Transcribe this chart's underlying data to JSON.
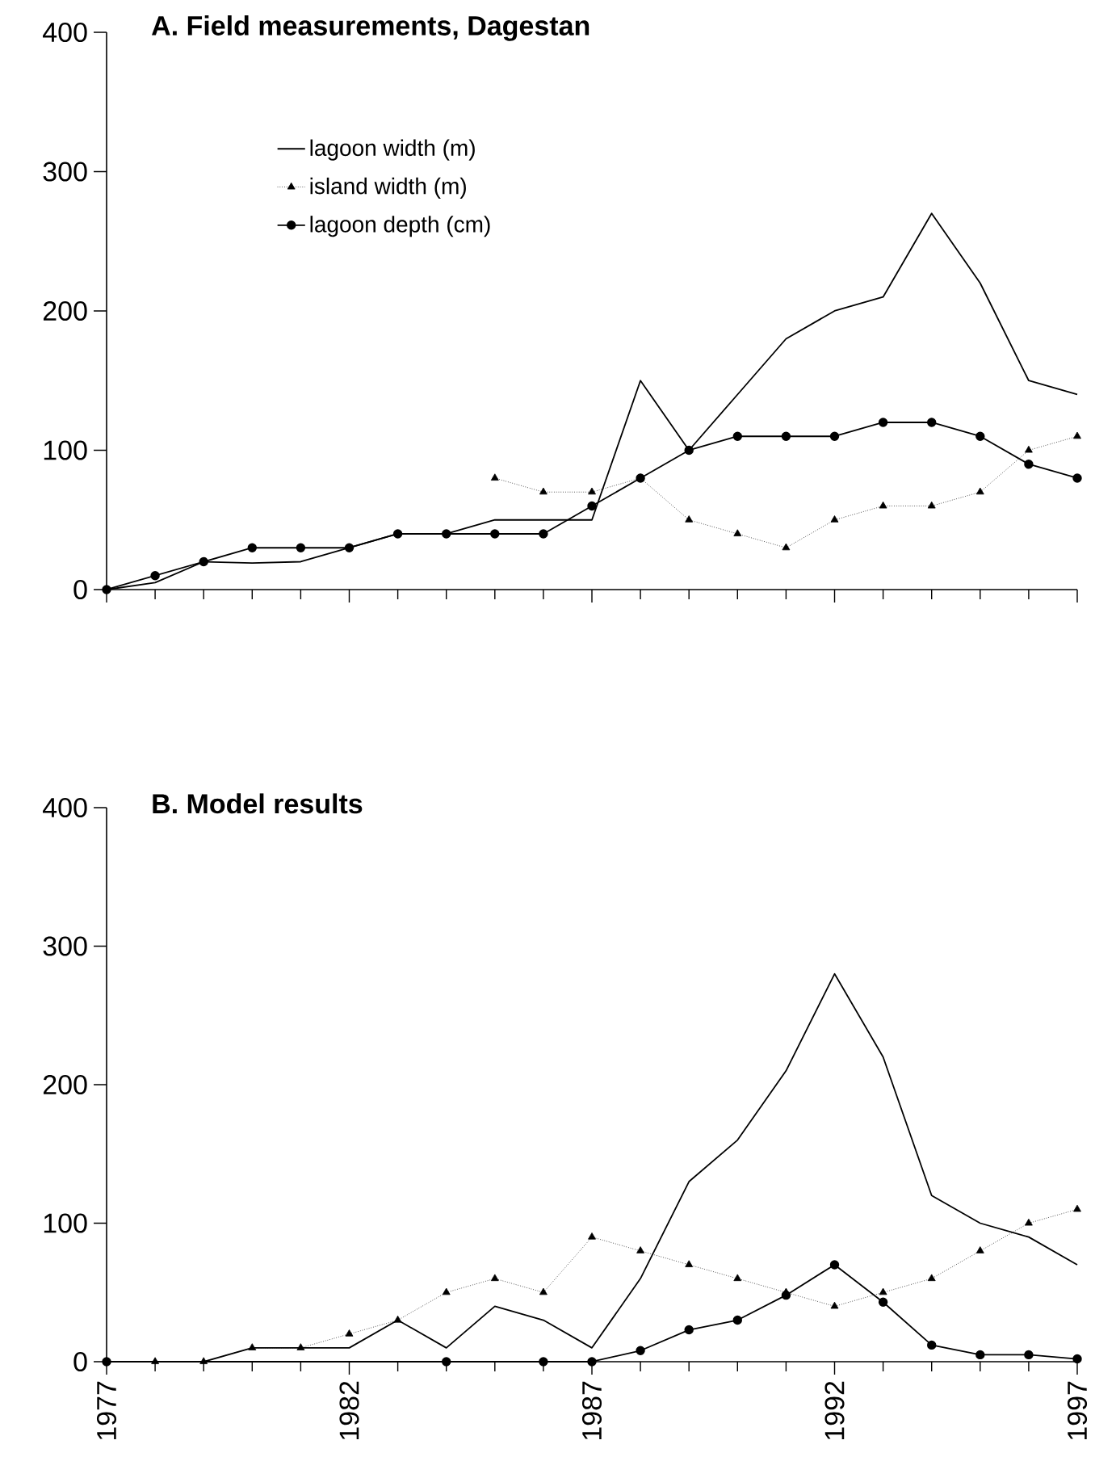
{
  "chart_data": [
    {
      "type": "line",
      "title": "A.  Field measurements, Dagestan",
      "x": [
        1977,
        1978,
        1979,
        1980,
        1981,
        1982,
        1983,
        1984,
        1985,
        1986,
        1987,
        1988,
        1989,
        1990,
        1991,
        1992,
        1993,
        1994,
        1995,
        1996,
        1997
      ],
      "series": [
        {
          "name": "lagoon width (m)",
          "color": "#000000",
          "marker": "none",
          "line_style": "solid",
          "values": [
            0,
            5,
            20,
            19,
            20,
            30,
            40,
            40,
            50,
            50,
            50,
            150,
            100,
            140,
            180,
            200,
            210,
            270,
            220,
            150,
            140
          ]
        },
        {
          "name": "island width (m)",
          "color": "#000000",
          "marker": "triangle",
          "line_style": "dotted",
          "values": [
            null,
            null,
            null,
            null,
            null,
            null,
            null,
            null,
            80,
            70,
            70,
            80,
            50,
            40,
            30,
            50,
            60,
            60,
            70,
            100,
            110
          ]
        },
        {
          "name": "lagoon depth (cm)",
          "color": "#000000",
          "marker": "circle",
          "line_style": "solid",
          "values": [
            0,
            10,
            20,
            30,
            30,
            30,
            40,
            40,
            40,
            40,
            60,
            80,
            100,
            110,
            110,
            110,
            120,
            120,
            110,
            90,
            80
          ]
        }
      ],
      "xlim": [
        1977,
        1997
      ],
      "xticks": [
        1977,
        1982,
        1987,
        1992,
        1997
      ],
      "ylim": [
        0,
        400
      ],
      "yticks": [
        0,
        100,
        200,
        300,
        400
      ],
      "tick_labels": "y",
      "legend": "top left",
      "grid": false
    },
    {
      "type": "line",
      "title": "B.  Model results",
      "x": [
        1977,
        1978,
        1979,
        1980,
        1981,
        1982,
        1983,
        1984,
        1985,
        1986,
        1987,
        1988,
        1989,
        1990,
        1991,
        1992,
        1993,
        1994,
        1995,
        1996,
        1997
      ],
      "series": [
        {
          "color": "#000000",
          "marker": "none",
          "line_style": "solid",
          "values": [
            0,
            0,
            0,
            10,
            10,
            10,
            30,
            10,
            40,
            30,
            10,
            60,
            130,
            160,
            210,
            280,
            220,
            120,
            100,
            90,
            70
          ]
        },
        {
          "color": "#000000",
          "marker": "triangle",
          "line_style": "dotted",
          "values": [
            0,
            0,
            0,
            10,
            10,
            20,
            30,
            50,
            60,
            50,
            90,
            80,
            70,
            60,
            50,
            40,
            50,
            60,
            80,
            100,
            110
          ]
        },
        {
          "color": "#000000",
          "marker": "circle",
          "line_style": "solid",
          "values": [
            0,
            null,
            null,
            null,
            null,
            null,
            null,
            0,
            null,
            0,
            0,
            8,
            23,
            30,
            48,
            70,
            43,
            12,
            5,
            5,
            2
          ]
        }
      ],
      "xlim": [
        1977,
        1997
      ],
      "xticks": [
        1977,
        1982,
        1987,
        1992,
        1997
      ],
      "ylim": [
        0,
        400
      ],
      "yticks": [
        0,
        100,
        200,
        300,
        400
      ],
      "legend": false,
      "grid": false
    }
  ]
}
